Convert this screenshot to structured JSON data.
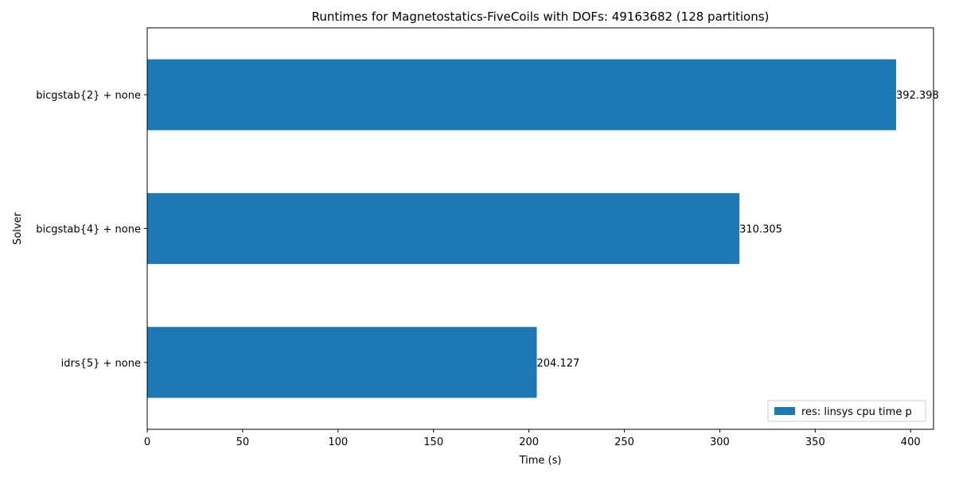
{
  "chart_data": {
    "type": "bar",
    "orientation": "horizontal",
    "title": "Runtimes for Magnetostatics-FiveCoils with DOFs: 49163682 (128 partitions)",
    "xlabel": "Time (s)",
    "ylabel": "Solver",
    "xlim": [
      0,
      412
    ],
    "xticks": [
      0,
      50,
      100,
      150,
      200,
      250,
      300,
      350,
      400
    ],
    "categories": [
      "bicgstab{2} + none",
      "bicgstab{4} + none",
      "idrs{5} + none"
    ],
    "series": [
      {
        "name": "res: linsys cpu time p",
        "color": "#1f77b4",
        "values": [
          392.398,
          310.305,
          204.127
        ],
        "labels": [
          "392.398",
          "310.305",
          "204.127"
        ]
      }
    ],
    "legend_position": "bottom-right",
    "grid": false
  }
}
